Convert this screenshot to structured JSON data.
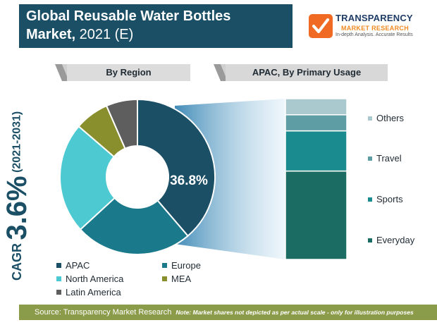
{
  "header": {
    "title_line1": "Global Reusable Water Bottles",
    "title_line2_bold": "Market,",
    "title_line2_rest": " 2021 (E)"
  },
  "logo": {
    "name": "TRANSPARENCY",
    "sub": "MARKET RESEARCH",
    "tagline": "In-depth Analysis. Accurate Results"
  },
  "cagr": {
    "label": "CAGR",
    "value": "3.6%",
    "period": "(2021-2031)"
  },
  "colors": {
    "title_bg": "#1b4f66",
    "footer_bg": "#8a9b4a"
  },
  "chart_data": [
    {
      "type": "pie",
      "title": "By Region",
      "donut": true,
      "highlight_label": "36.8%",
      "slices": [
        {
          "label": "APAC",
          "value": 36.8,
          "color": "#1b4f66"
        },
        {
          "label": "Europe",
          "value": 23.2,
          "color": "#1a7a8c"
        },
        {
          "label": "North America",
          "value": 22.0,
          "color": "#4dc9d2"
        },
        {
          "label": "MEA",
          "value": 6.8,
          "color": "#8a8f2e"
        },
        {
          "label": "Latin America",
          "value": 6.2,
          "color": "#5e5e5e"
        }
      ],
      "legend": [
        {
          "label": "APAC",
          "color": "#1b4f66"
        },
        {
          "label": "Europe",
          "color": "#1a7a8c"
        },
        {
          "label": "North America",
          "color": "#4dc9d2"
        },
        {
          "label": "MEA",
          "color": "#8a8f2e"
        },
        {
          "label": "Latin America",
          "color": "#5e5e5e"
        }
      ]
    },
    {
      "type": "bar",
      "stacked": true,
      "title": "APAC, By Primary Usage",
      "segments": [
        {
          "label": "Everyday",
          "value": 55,
          "color": "#1b6c63"
        },
        {
          "label": "Sports",
          "value": 25,
          "color": "#1a8b8e"
        },
        {
          "label": "Travel",
          "value": 10,
          "color": "#5e9da4"
        },
        {
          "label": "Others",
          "value": 10,
          "color": "#a9c9cf"
        }
      ]
    }
  ],
  "footer": {
    "source": "Source: Transparency Market Research",
    "note": "Note: Market shares not depicted as per actual scale - only for illustration purposes"
  }
}
